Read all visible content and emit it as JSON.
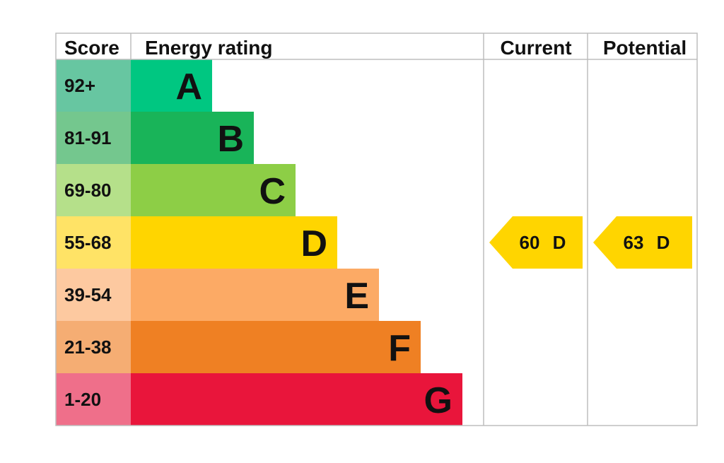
{
  "chart_data": {
    "type": "table",
    "headers": {
      "score": "Score",
      "rating": "Energy rating",
      "current": "Current",
      "potential": "Potential"
    },
    "bands": [
      {
        "letter": "A",
        "range": "92+",
        "color": "#00c781",
        "score_bg": "#67c6a1"
      },
      {
        "letter": "B",
        "range": "81-91",
        "color": "#19b459",
        "score_bg": "#74c78e"
      },
      {
        "letter": "C",
        "range": "69-80",
        "color": "#8dce46",
        "score_bg": "#b5e08a"
      },
      {
        "letter": "D",
        "range": "55-68",
        "color": "#ffd500",
        "score_bg": "#ffe366"
      },
      {
        "letter": "E",
        "range": "39-54",
        "color": "#fcaa65",
        "score_bg": "#fdc9a0"
      },
      {
        "letter": "F",
        "range": "21-38",
        "color": "#ef8023",
        "score_bg": "#f5ad73"
      },
      {
        "letter": "G",
        "range": "1-20",
        "color": "#e9153b",
        "score_bg": "#ef6f8a"
      }
    ],
    "current": {
      "value": "60",
      "letter": "D"
    },
    "potential": {
      "value": "63",
      "letter": "D"
    }
  }
}
